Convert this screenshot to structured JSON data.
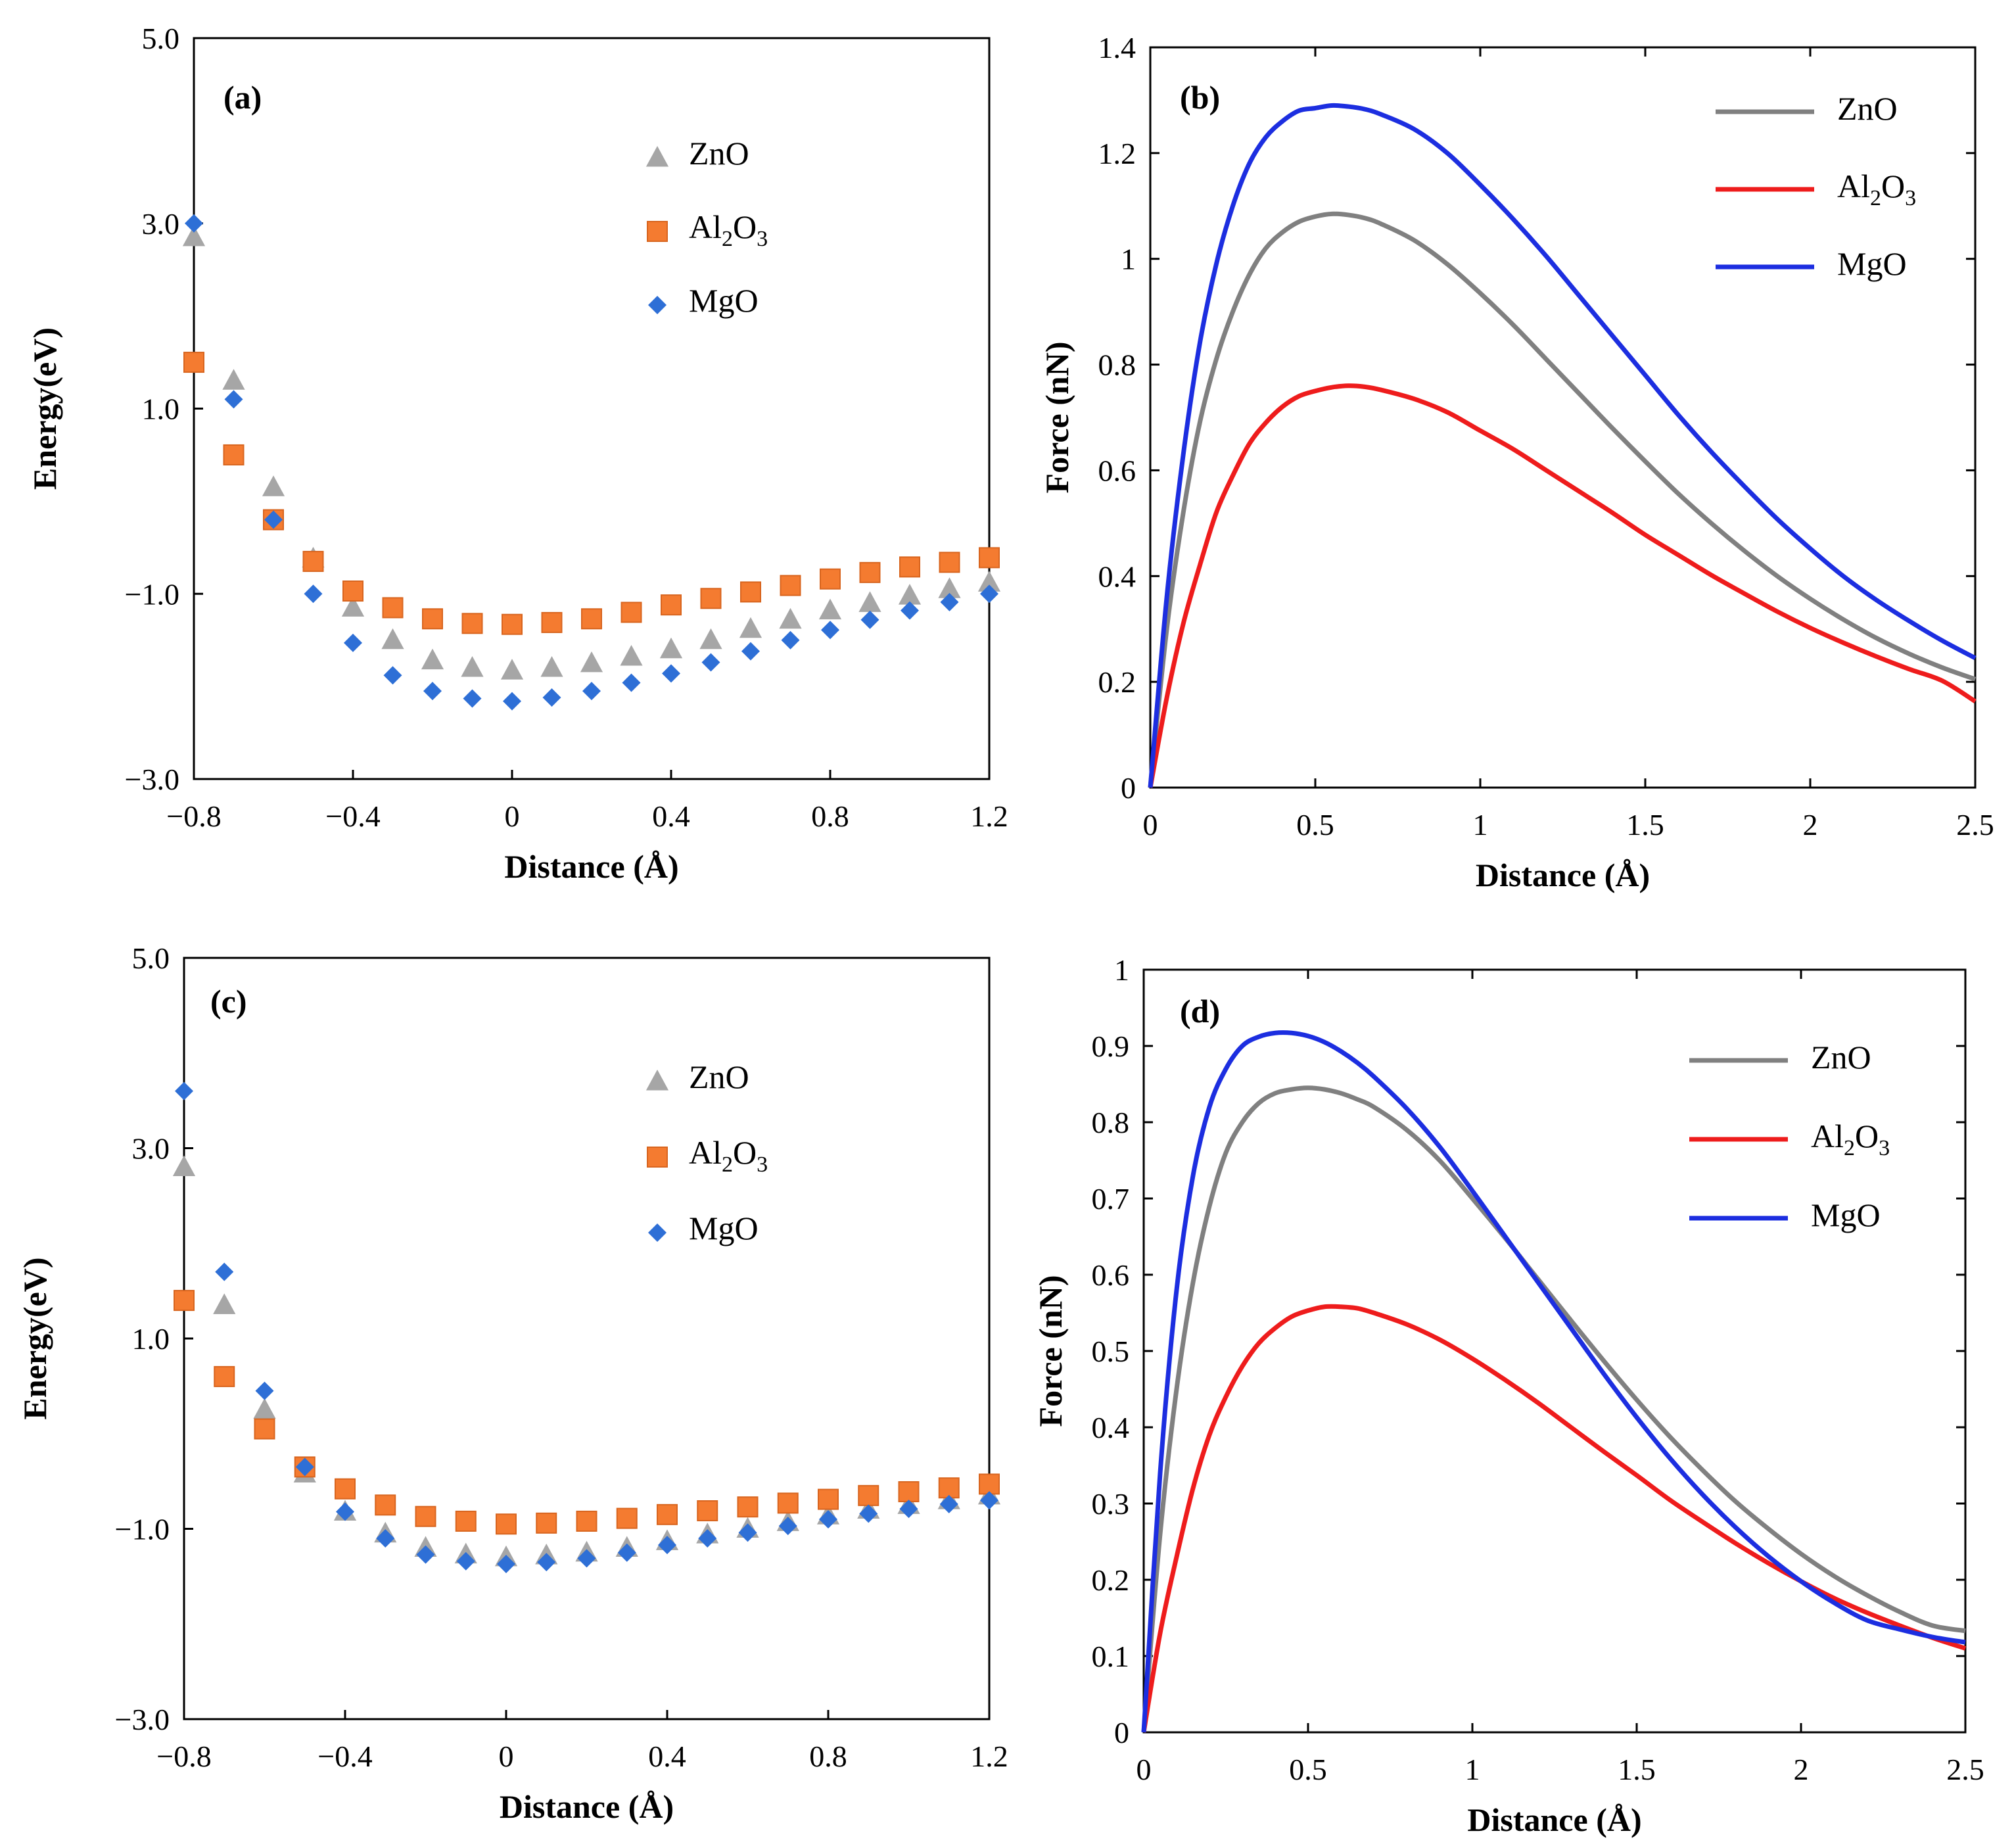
{
  "chart_data": [
    {
      "panel": "a",
      "type": "scatter",
      "panel_label": "(a)",
      "xlabel": "Distance (Å)",
      "ylabel": "Energy(eV)",
      "xlim": [
        -0.8,
        1.2
      ],
      "ylim": [
        -3.0,
        5.0
      ],
      "xticks": [
        "−0.8",
        "−0.4",
        "0",
        "0.4",
        "0.8",
        "1.2"
      ],
      "yticks": [
        "−3.0",
        "−1.0",
        "1.0",
        "3.0",
        "5.0"
      ],
      "legend_position": "top-right",
      "x": [
        -0.8,
        -0.7,
        -0.6,
        -0.5,
        -0.4,
        -0.3,
        -0.2,
        -0.1,
        0.0,
        0.1,
        0.2,
        0.3,
        0.4,
        0.5,
        0.6,
        0.7,
        0.8,
        0.9,
        1.0,
        1.1,
        1.2
      ],
      "series": [
        {
          "name": "ZnO",
          "legend_main": "ZnO",
          "legend_sub": "",
          "legend_tail": "",
          "marker": "triangle",
          "color": "#a6a6a6",
          "values": [
            2.85,
            1.3,
            0.15,
            -0.62,
            -1.15,
            -1.5,
            -1.72,
            -1.8,
            -1.83,
            -1.8,
            -1.75,
            -1.68,
            -1.6,
            -1.5,
            -1.38,
            -1.28,
            -1.18,
            -1.1,
            -1.02,
            -0.95,
            -0.88
          ]
        },
        {
          "name": "Al2O3",
          "legend_main": "Al",
          "legend_sub": "2",
          "legend_tail": "O",
          "legend_sub2": "3",
          "marker": "square",
          "color": "#f47b30",
          "values": [
            1.5,
            0.5,
            -0.2,
            -0.65,
            -0.97,
            -1.15,
            -1.27,
            -1.32,
            -1.33,
            -1.31,
            -1.27,
            -1.2,
            -1.12,
            -1.05,
            -0.98,
            -0.91,
            -0.84,
            -0.77,
            -0.71,
            -0.66,
            -0.61
          ]
        },
        {
          "name": "MgO",
          "legend_main": "MgO",
          "legend_sub": "",
          "legend_tail": "",
          "marker": "diamond",
          "color": "#2e6fd6",
          "values": [
            3.0,
            1.1,
            -0.2,
            -1.0,
            -1.53,
            -1.88,
            -2.05,
            -2.13,
            -2.16,
            -2.12,
            -2.05,
            -1.96,
            -1.86,
            -1.74,
            -1.62,
            -1.5,
            -1.39,
            -1.28,
            -1.18,
            -1.09,
            -1.0
          ]
        }
      ]
    },
    {
      "panel": "b",
      "type": "line",
      "panel_label": "(b)",
      "xlabel": "Distance (Å)",
      "ylabel": "Force (nN)",
      "xlim": [
        0,
        2.5
      ],
      "ylim": [
        0,
        1.4
      ],
      "xticks": [
        "0",
        "0.5",
        "1",
        "1.5",
        "2",
        "2.5"
      ],
      "yticks": [
        "0",
        "0.2",
        "0.4",
        "0.6",
        "0.8",
        "1",
        "1.2",
        "1.4"
      ],
      "legend_position": "top-right",
      "x": [
        0,
        0.05,
        0.1,
        0.15,
        0.2,
        0.25,
        0.3,
        0.35,
        0.4,
        0.45,
        0.5,
        0.55,
        0.6,
        0.65,
        0.7,
        0.8,
        0.9,
        1.0,
        1.1,
        1.2,
        1.3,
        1.4,
        1.5,
        1.6,
        1.7,
        1.8,
        1.9,
        2.0,
        2.1,
        2.2,
        2.3,
        2.4,
        2.5
      ],
      "series": [
        {
          "name": "ZnO",
          "legend_main": "ZnO",
          "legend_sub": "",
          "legend_tail": "",
          "color": "#808080",
          "values": [
            0.0,
            0.3,
            0.52,
            0.69,
            0.81,
            0.9,
            0.97,
            1.02,
            1.05,
            1.07,
            1.08,
            1.085,
            1.083,
            1.077,
            1.066,
            1.035,
            0.99,
            0.935,
            0.875,
            0.81,
            0.745,
            0.68,
            0.617,
            0.556,
            0.5,
            0.448,
            0.4,
            0.357,
            0.318,
            0.283,
            0.253,
            0.227,
            0.205
          ]
        },
        {
          "name": "Al2O3",
          "legend_main": "Al",
          "legend_sub": "2",
          "legend_tail": "O",
          "legend_sub2": "3",
          "color": "#ee1c1c",
          "values": [
            0.0,
            0.17,
            0.31,
            0.42,
            0.52,
            0.59,
            0.65,
            0.69,
            0.72,
            0.74,
            0.75,
            0.757,
            0.76,
            0.758,
            0.752,
            0.735,
            0.71,
            0.675,
            0.64,
            0.6,
            0.56,
            0.52,
            0.478,
            0.44,
            0.402,
            0.367,
            0.333,
            0.302,
            0.274,
            0.248,
            0.224,
            0.202,
            0.163
          ]
        },
        {
          "name": "MgO",
          "legend_main": "MgO",
          "legend_sub": "",
          "legend_tail": "",
          "color": "#1c2ee0",
          "values": [
            0.0,
            0.36,
            0.63,
            0.84,
            0.99,
            1.1,
            1.18,
            1.23,
            1.26,
            1.28,
            1.285,
            1.29,
            1.288,
            1.283,
            1.273,
            1.245,
            1.2,
            1.14,
            1.075,
            1.005,
            0.93,
            0.855,
            0.78,
            0.705,
            0.635,
            0.57,
            0.508,
            0.452,
            0.4,
            0.355,
            0.315,
            0.278,
            0.245
          ]
        }
      ]
    },
    {
      "panel": "c",
      "type": "scatter",
      "panel_label": "(c)",
      "xlabel": "Distance (Å)",
      "ylabel": "Energy(eV)",
      "xlim": [
        -0.8,
        1.2
      ],
      "ylim": [
        -3.0,
        5.0
      ],
      "xticks": [
        "−0.8",
        "−0.4",
        "0",
        "0.4",
        "0.8",
        "1.2"
      ],
      "yticks": [
        "−3.0",
        "−1.0",
        "1.0",
        "3.0",
        "5.0"
      ],
      "legend_position": "top-right",
      "x": [
        -0.8,
        -0.7,
        -0.6,
        -0.5,
        -0.4,
        -0.3,
        -0.2,
        -0.1,
        0.0,
        0.1,
        0.2,
        0.3,
        0.4,
        0.5,
        0.6,
        0.7,
        0.8,
        0.9,
        1.0,
        1.1,
        1.2
      ],
      "series": [
        {
          "name": "ZnO",
          "legend_main": "ZnO",
          "legend_sub": "",
          "legend_tail": "",
          "marker": "triangle",
          "color": "#a6a6a6",
          "values": [
            2.8,
            1.35,
            0.25,
            -0.42,
            -0.82,
            -1.05,
            -1.2,
            -1.27,
            -1.3,
            -1.28,
            -1.25,
            -1.2,
            -1.13,
            -1.06,
            -1.0,
            -0.93,
            -0.86,
            -0.8,
            -0.75,
            -0.7,
            -0.65
          ]
        },
        {
          "name": "Al2O3",
          "legend_main": "Al",
          "legend_sub": "2",
          "legend_tail": "O",
          "legend_sub2": "3",
          "marker": "square",
          "color": "#f47b30",
          "values": [
            1.4,
            0.6,
            0.05,
            -0.35,
            -0.58,
            -0.75,
            -0.87,
            -0.92,
            -0.95,
            -0.94,
            -0.92,
            -0.89,
            -0.85,
            -0.81,
            -0.77,
            -0.73,
            -0.69,
            -0.65,
            -0.61,
            -0.57,
            -0.53
          ]
        },
        {
          "name": "MgO",
          "legend_main": "MgO",
          "legend_sub": "",
          "legend_tail": "",
          "marker": "diamond",
          "color": "#2e6fd6",
          "values": [
            3.6,
            1.7,
            0.45,
            -0.35,
            -0.82,
            -1.1,
            -1.27,
            -1.34,
            -1.37,
            -1.35,
            -1.31,
            -1.25,
            -1.17,
            -1.1,
            -1.04,
            -0.97,
            -0.9,
            -0.84,
            -0.79,
            -0.74,
            -0.7
          ]
        }
      ]
    },
    {
      "panel": "d",
      "type": "line",
      "panel_label": "(d)",
      "xlabel": "Distance (Å)",
      "ylabel": "Force (nN)",
      "xlim": [
        0,
        2.5
      ],
      "ylim": [
        0,
        1.0
      ],
      "xticks": [
        "0",
        "0.5",
        "1",
        "1.5",
        "2",
        "2.5"
      ],
      "yticks": [
        "0",
        "0.1",
        "0.2",
        "0.3",
        "0.4",
        "0.5",
        "0.6",
        "0.7",
        "0.8",
        "0.9",
        "1"
      ],
      "legend_position": "top-right",
      "x": [
        0,
        0.05,
        0.1,
        0.15,
        0.2,
        0.25,
        0.3,
        0.35,
        0.4,
        0.45,
        0.5,
        0.55,
        0.6,
        0.65,
        0.7,
        0.8,
        0.9,
        1.0,
        1.1,
        1.2,
        1.3,
        1.4,
        1.5,
        1.6,
        1.7,
        1.8,
        1.9,
        2.0,
        2.1,
        2.2,
        2.3,
        2.4,
        2.5
      ],
      "series": [
        {
          "name": "ZnO",
          "legend_main": "ZnO",
          "legend_sub": "",
          "legend_tail": "",
          "color": "#808080",
          "values": [
            0.0,
            0.26,
            0.45,
            0.59,
            0.69,
            0.76,
            0.8,
            0.825,
            0.838,
            0.843,
            0.845,
            0.843,
            0.838,
            0.83,
            0.82,
            0.79,
            0.75,
            0.7,
            0.648,
            0.594,
            0.54,
            0.487,
            0.436,
            0.388,
            0.344,
            0.303,
            0.267,
            0.234,
            0.205,
            0.18,
            0.158,
            0.14,
            0.133
          ]
        },
        {
          "name": "Al2O3",
          "legend_main": "Al",
          "legend_sub": "2",
          "legend_tail": "O",
          "legend_sub2": "3",
          "color": "#ee1c1c",
          "values": [
            0.0,
            0.13,
            0.23,
            0.32,
            0.39,
            0.44,
            0.48,
            0.51,
            0.53,
            0.545,
            0.553,
            0.558,
            0.558,
            0.556,
            0.55,
            0.535,
            0.515,
            0.49,
            0.462,
            0.432,
            0.4,
            0.368,
            0.337,
            0.305,
            0.276,
            0.248,
            0.222,
            0.198,
            0.176,
            0.157,
            0.14,
            0.124,
            0.11
          ]
        },
        {
          "name": "MgO",
          "legend_main": "MgO",
          "legend_sub": "",
          "legend_tail": "",
          "color": "#1c2ee0",
          "values": [
            0.0,
            0.34,
            0.58,
            0.73,
            0.82,
            0.87,
            0.9,
            0.912,
            0.917,
            0.917,
            0.913,
            0.905,
            0.893,
            0.878,
            0.86,
            0.818,
            0.768,
            0.71,
            0.65,
            0.59,
            0.53,
            0.47,
            0.413,
            0.36,
            0.312,
            0.269,
            0.231,
            0.198,
            0.17,
            0.147,
            0.135,
            0.125,
            0.118
          ]
        }
      ]
    }
  ]
}
